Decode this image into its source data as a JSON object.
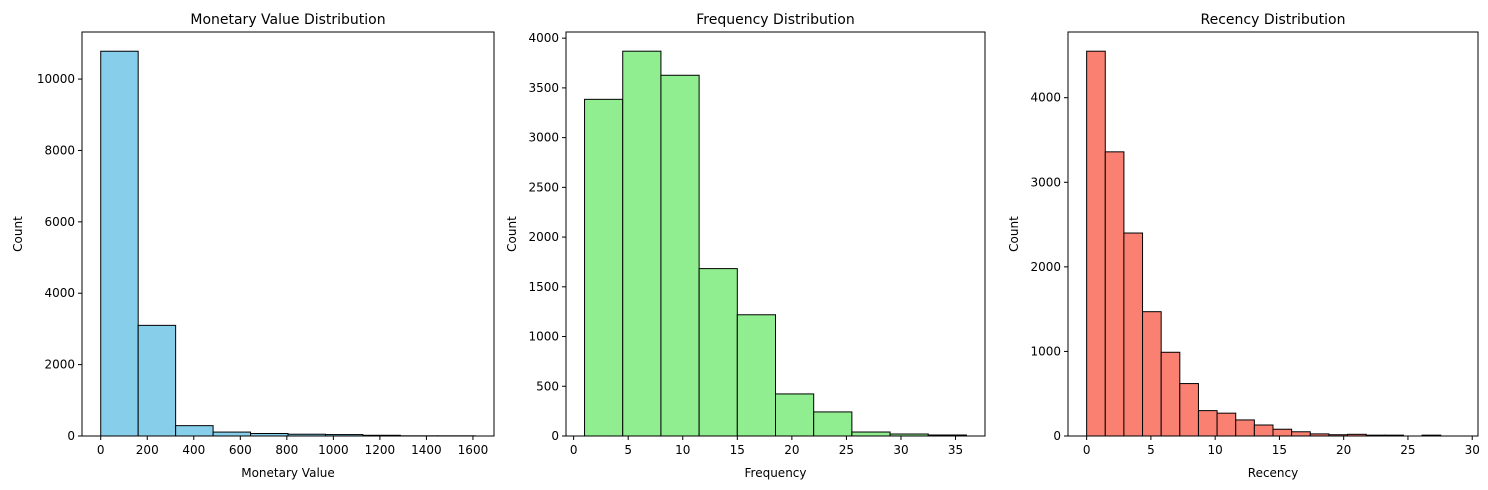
{
  "chart_data": [
    {
      "type": "histogram",
      "title": "Monetary Value Distribution",
      "xlabel": "Monetary Value",
      "ylabel": "Count",
      "color": "#87ceeb",
      "bins": [
        0,
        161,
        322,
        483,
        644,
        805,
        966,
        1127,
        1288,
        1449,
        1610
      ],
      "values": [
        10780,
        3100,
        290,
        110,
        70,
        50,
        40,
        20,
        5,
        5
      ],
      "xlim": [
        -80.5,
        1690.5
      ],
      "ylim": [
        0,
        11319
      ],
      "xticks": [
        0,
        200,
        400,
        600,
        800,
        1000,
        1200,
        1400,
        1600
      ],
      "yticks": [
        0,
        2000,
        4000,
        6000,
        8000,
        10000
      ]
    },
    {
      "type": "histogram",
      "title": "Frequency Distribution",
      "xlabel": "Frequency",
      "ylabel": "Count",
      "color": "#90ee90",
      "bins": [
        1,
        4.5,
        8,
        11.5,
        15,
        18.5,
        22,
        25.5,
        29,
        32.5,
        36
      ],
      "values": [
        3385,
        3869,
        3627,
        1683,
        1219,
        423,
        242,
        40,
        20,
        10
      ],
      "xlim": [
        -0.7,
        37.7
      ],
      "ylim": [
        0,
        4062
      ],
      "xticks": [
        0,
        5,
        10,
        15,
        20,
        25,
        30,
        35
      ],
      "yticks": [
        0,
        500,
        1000,
        1500,
        2000,
        2500,
        3000,
        3500,
        4000
      ]
    },
    {
      "type": "histogram",
      "title": "Recency Distribution",
      "xlabel": "Recency",
      "ylabel": "Count",
      "color": "#fa8072",
      "bins": [
        0,
        1.45,
        2.9,
        4.35,
        5.8,
        7.25,
        8.7,
        10.15,
        11.6,
        13.05,
        14.5,
        15.95,
        17.4,
        18.85,
        20.3,
        21.75,
        23.2,
        24.65,
        26.1,
        27.55,
        29
      ],
      "values": [
        4550,
        3360,
        2400,
        1470,
        990,
        620,
        300,
        270,
        190,
        130,
        80,
        50,
        25,
        15,
        20,
        10,
        10,
        0,
        10,
        0
      ],
      "xlim": [
        -1.45,
        30.45
      ],
      "ylim": [
        0,
        4777
      ],
      "xticks": [
        0,
        5,
        10,
        15,
        20,
        25,
        30
      ],
      "yticks": [
        0,
        1000,
        2000,
        3000,
        4000
      ]
    }
  ]
}
